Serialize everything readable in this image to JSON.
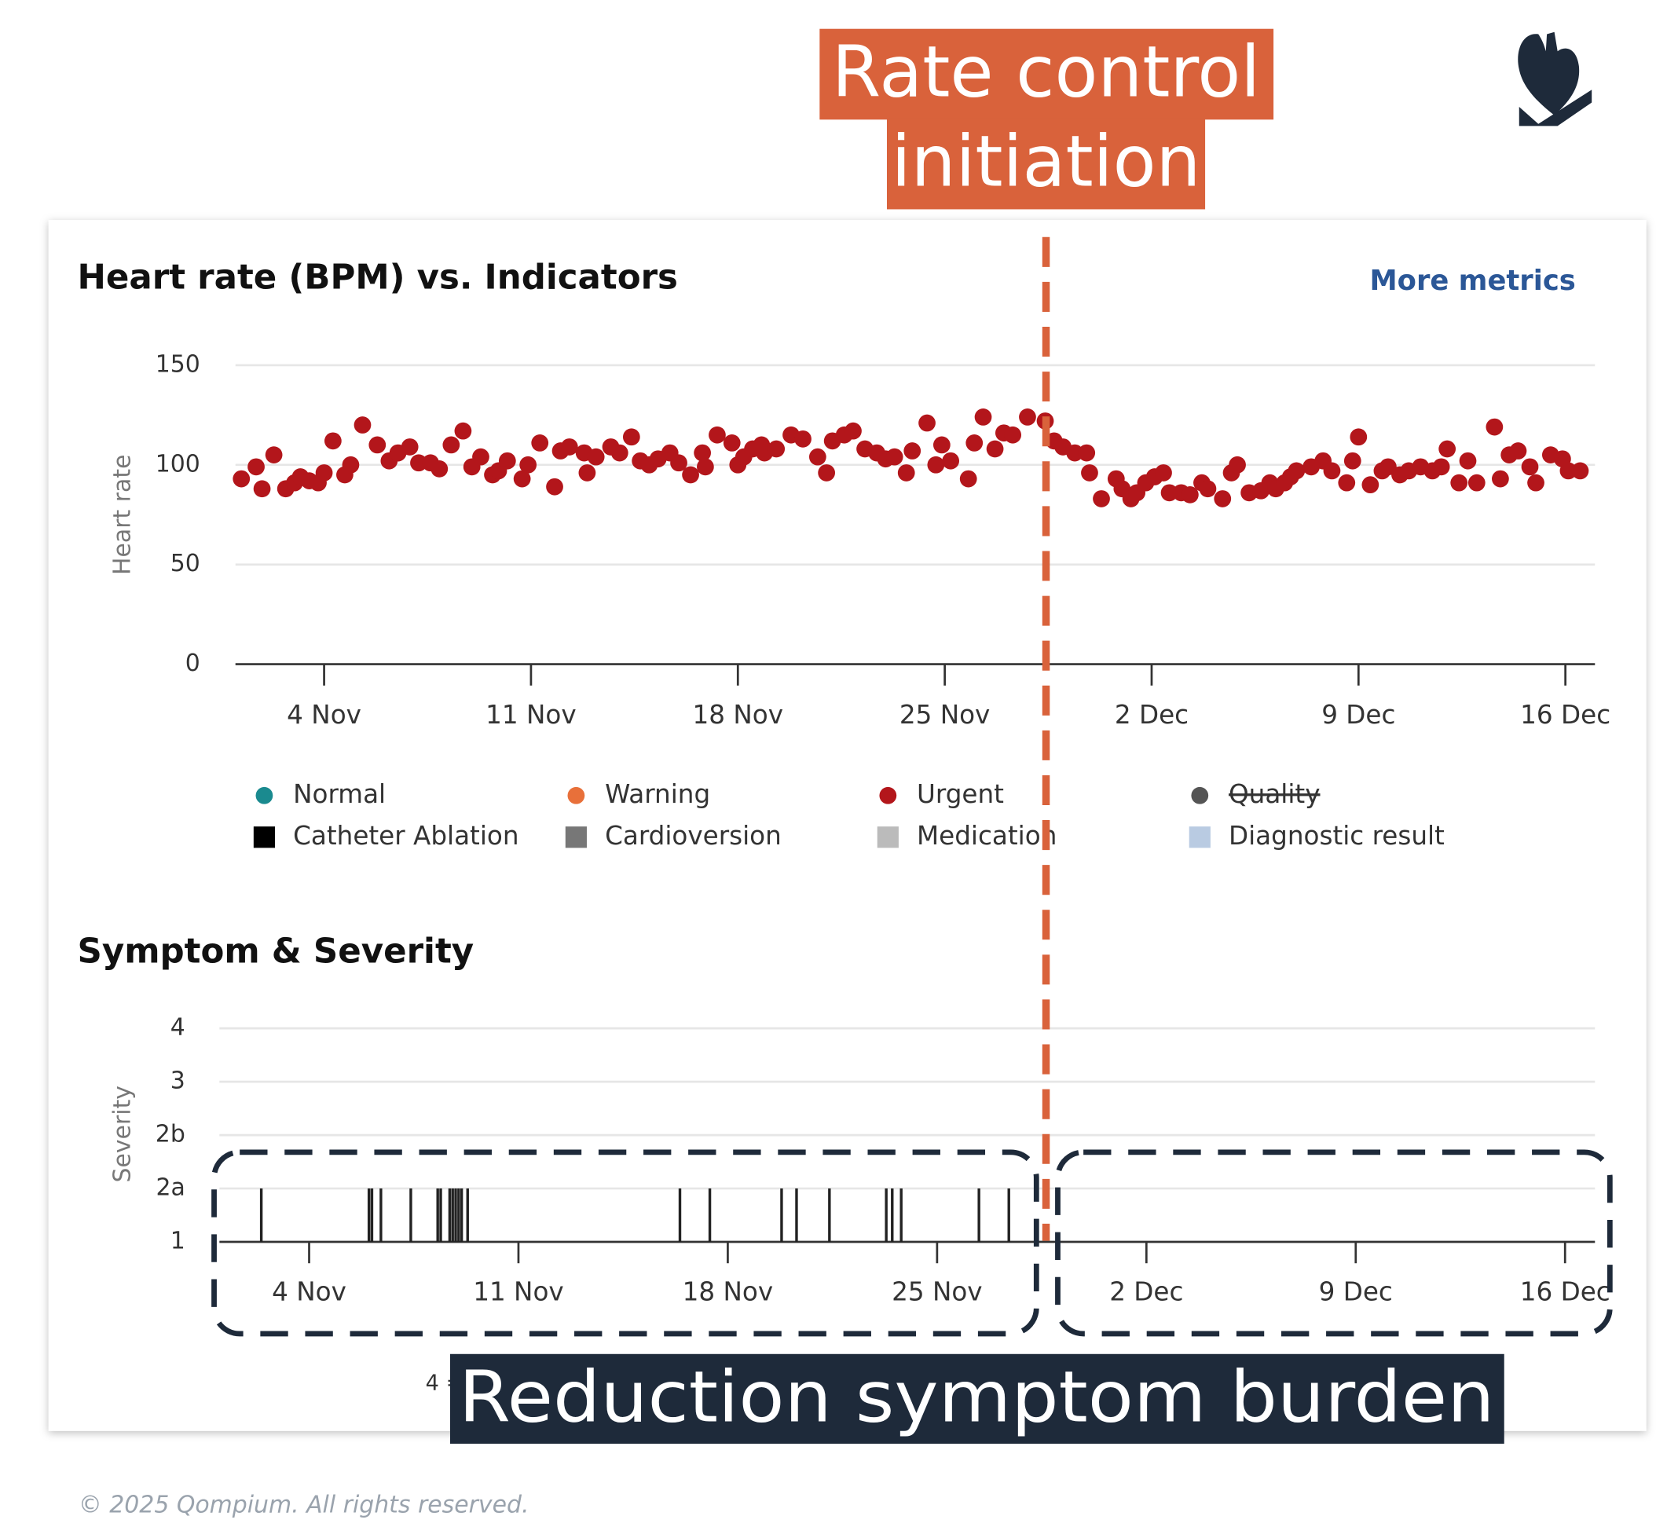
{
  "chart_data": [
    {
      "type": "scatter",
      "title": "Heart rate (BPM) vs. Indicators",
      "y_label": "Heart rate",
      "color": "#b3161b",
      "x": [
        1.2,
        1.7,
        1.9,
        2.3,
        2.7,
        3.0,
        3.2,
        3.5,
        3.8,
        4.0,
        4.3,
        4.7,
        4.9,
        5.3,
        5.8,
        6.2,
        6.5,
        6.9,
        7.2,
        7.6,
        7.9,
        8.3,
        8.7,
        9.0,
        9.3,
        9.7,
        9.9,
        10.2,
        10.7,
        10.9,
        11.3,
        11.8,
        12.0,
        12.3,
        12.8,
        12.9,
        13.2,
        13.7,
        14.0,
        14.4,
        14.7,
        15.0,
        15.3,
        15.7,
        16.0,
        16.4,
        16.8,
        16.9,
        17.3,
        17.8,
        18.0,
        18.2,
        18.5,
        18.8,
        18.9,
        19.3,
        19.8,
        20.2,
        20.7,
        21.0,
        21.2,
        21.6,
        21.9,
        22.3,
        22.7,
        23.0,
        23.3,
        23.7,
        23.9,
        24.4,
        24.7,
        24.9,
        25.2,
        25.8,
        26.0,
        26.3,
        26.7,
        27.0,
        27.3,
        27.8,
        28.4,
        28.7,
        29.0,
        29.4,
        29.8,
        29.9,
        30.3,
        30.8,
        31.0,
        31.3,
        31.5,
        31.8,
        32.1,
        32.4,
        32.6,
        33.0,
        33.3,
        33.7,
        33.9,
        34.4,
        34.7,
        34.9,
        35.3,
        35.7,
        36.0,
        36.2,
        36.5,
        36.7,
        36.9,
        37.4,
        37.8,
        38.1,
        38.6,
        38.8,
        39.0,
        39.4,
        39.8,
        40.0,
        40.4,
        40.7,
        41.1,
        41.5,
        41.8,
        42.0,
        42.4,
        42.7,
        43.0,
        43.6,
        43.8,
        44.1,
        44.4,
        44.8,
        45.0,
        45.5,
        45.9,
        46.1,
        46.5
      ],
      "values": [
        93,
        99,
        88,
        105,
        88,
        91,
        94,
        92,
        91,
        96,
        112,
        95,
        100,
        120,
        110,
        102,
        106,
        109,
        101,
        101,
        98,
        110,
        117,
        99,
        104,
        95,
        97,
        102,
        93,
        100,
        111,
        89,
        107,
        109,
        106,
        96,
        104,
        109,
        106,
        114,
        102,
        100,
        103,
        106,
        101,
        95,
        106,
        99,
        115,
        111,
        100,
        104,
        108,
        110,
        106,
        108,
        115,
        113,
        104,
        96,
        112,
        115,
        117,
        108,
        106,
        103,
        104,
        96,
        107,
        121,
        100,
        110,
        102,
        93,
        111,
        124,
        108,
        116,
        115,
        124,
        122,
        112,
        109,
        106,
        106,
        96,
        83,
        93,
        88,
        83,
        86,
        91,
        94,
        96,
        86,
        86,
        85,
        91,
        88,
        83,
        96,
        100,
        86,
        87,
        91,
        88,
        91,
        94,
        97,
        99,
        102,
        97,
        91,
        102,
        114,
        90,
        97,
        99,
        95,
        97,
        99,
        97,
        99,
        108,
        91,
        102,
        91,
        119,
        93,
        105,
        107,
        99,
        91,
        105,
        103,
        97,
        97
      ],
      "xlim": [
        1,
        47
      ],
      "xticks": [
        {
          "value": 4,
          "label": "4 Nov"
        },
        {
          "value": 11,
          "label": "11 Nov"
        },
        {
          "value": 18,
          "label": "18 Nov"
        },
        {
          "value": 25,
          "label": "25 Nov"
        },
        {
          "value": 32,
          "label": "2 Dec"
        },
        {
          "value": 39,
          "label": "9 Dec"
        },
        {
          "value": 46,
          "label": "16 Dec"
        }
      ],
      "ylim": [
        0,
        150
      ],
      "yticks": [
        0,
        50,
        100,
        150
      ],
      "grid": true,
      "legend": [
        {
          "name": "Normal",
          "color": "#1a8a8f",
          "marker": "circle"
        },
        {
          "name": "Warning",
          "color": "#e8703a",
          "marker": "circle"
        },
        {
          "name": "Urgent",
          "color": "#b3161b",
          "marker": "circle"
        },
        {
          "name": "Quality",
          "color": "#555555",
          "marker": "circle",
          "struck": true
        },
        {
          "name": "Catheter Ablation",
          "color": "#000000",
          "marker": "square"
        },
        {
          "name": "Cardioversion",
          "color": "#777777",
          "marker": "square"
        },
        {
          "name": "Medication",
          "color": "#bbbbbb",
          "marker": "square"
        },
        {
          "name": "Diagnostic result",
          "color": "#b9cbe2",
          "marker": "square"
        }
      ]
    },
    {
      "type": "event",
      "title": "Symptom & Severity",
      "y_label": "Severity",
      "color": "#222222",
      "x": [
        2.4,
        6.0,
        6.1,
        6.4,
        7.4,
        8.3,
        8.4,
        8.7,
        8.8,
        8.9,
        9.0,
        9.1,
        9.3,
        16.4,
        17.4,
        19.8,
        20.3,
        21.4,
        23.3,
        23.5,
        23.8,
        26.4,
        27.4
      ],
      "values": [
        "2a",
        "2a",
        "2a",
        "2a",
        "2a",
        "2a",
        "2a",
        "2a",
        "2a",
        "2a",
        "2a",
        "2a",
        "2a",
        "2a",
        "2a",
        "2a",
        "2a",
        "2a",
        "2a",
        "2a",
        "2a",
        "2a",
        "2a"
      ],
      "xlim": [
        1,
        47
      ],
      "xticks": [
        {
          "value": 4,
          "label": "4 Nov"
        },
        {
          "value": 11,
          "label": "11 Nov"
        },
        {
          "value": 18,
          "label": "18 Nov"
        },
        {
          "value": 25,
          "label": "25 Nov"
        },
        {
          "value": 32,
          "label": "2 Dec"
        },
        {
          "value": 39,
          "label": "9 Dec"
        },
        {
          "value": 46,
          "label": "16 Dec"
        }
      ],
      "ycategories": [
        "1",
        "2a",
        "2b",
        "3",
        "4"
      ],
      "grid": true
    }
  ],
  "link": "More metrics",
  "note": "4 =",
  "annotations": {
    "rate_control": [
      "Rate control",
      "initiation"
    ],
    "symptom_burden": "Reduction symptom burden"
  },
  "footer": "© 2025 Qompium. All rights reserved."
}
